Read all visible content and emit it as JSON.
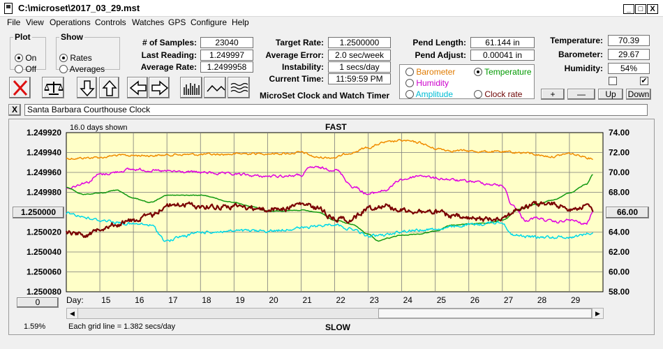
{
  "window": {
    "title": "C:\\microset\\2017_03_29.mst",
    "min_label": "_",
    "max_label": "□",
    "close_label": "X"
  },
  "menu": [
    "File",
    "View",
    "Operations",
    "Controls",
    "Watches",
    "GPS",
    "Configure",
    "Help"
  ],
  "plot_group": {
    "title": "Plot",
    "options": [
      "On",
      "Off"
    ],
    "selected": "On"
  },
  "show_group": {
    "title": "Show",
    "options": [
      "Rates",
      "Averages"
    ],
    "selected": "Rates"
  },
  "stats": {
    "samples_label": "# of Samples:",
    "samples": "23040",
    "last_reading_label": "Last Reading:",
    "last_reading": "1.249997",
    "average_rate_label": "Average Rate:",
    "average_rate": "1.2499958",
    "target_rate_label": "Target Rate:",
    "target_rate": "1.2500000",
    "average_error_label": "Average Error:",
    "average_error": "2.0 sec/week",
    "instability_label": "Instability:",
    "instability": "1 secs/day",
    "current_time_label": "Current Time:",
    "current_time": "11:59:59 PM",
    "pend_length_label": "Pend Length:",
    "pend_length": "61.144 in",
    "pend_adjust_label": "Pend Adjust:",
    "pend_adjust": "0.00041 in",
    "temperature_label": "Temperature:",
    "temperature": "70.39",
    "barometer_label": "Barometer:",
    "barometer": "29.67",
    "humidity_label": "Humidity:",
    "humidity": "54%"
  },
  "app_caption": "MicroSet Clock and Watch Timer",
  "sensor_options": [
    {
      "label": "Barometer",
      "color": "#e07a00",
      "selected": false
    },
    {
      "label": "Temperature",
      "color": "#009900",
      "selected": true
    },
    {
      "label": "Humidity",
      "color": "#cc00cc",
      "selected": false
    },
    {
      "label": "Clock rate",
      "color": "#6b0000",
      "selected": false
    },
    {
      "label": "Amplitude",
      "color": "#00bcd4",
      "selected": false
    }
  ],
  "adjust_buttons": {
    "plus": "+",
    "minus": "—",
    "up": "Up",
    "down": "Down"
  },
  "checkboxes": [
    {
      "checked": false
    },
    {
      "checked": true
    }
  ],
  "clock_name": "Santa Barbara Courthouse Clock",
  "clear_label": "X",
  "toolbar_icons": [
    "close-icon",
    "balance-scale-icon",
    "arrow-down-icon",
    "arrow-up-icon",
    "arrow-left-icon",
    "arrow-right-icon",
    "histogram-icon",
    "wave-icon",
    "multi-wave-icon"
  ],
  "chart_header": {
    "days_shown": "16.0 days shown",
    "top_label": "FAST",
    "bottom_label": "SLOW",
    "grid_note": "Each grid line = 1.382 secs/day",
    "day_prefix": "Day:",
    "percent": "1.59%",
    "left_scroll_value": "0"
  },
  "chart_data": {
    "type": "line",
    "left_axis_ticks": [
      "1.249920",
      "1.249940",
      "1.249960",
      "1.249980",
      "1.250000",
      "1.250020",
      "1.250040",
      "1.250060",
      "1.250080"
    ],
    "left_axis_value_box": "1.250000",
    "right_axis_ticks": [
      "74.00",
      "72.00",
      "70.00",
      "68.00",
      "66.00",
      "64.00",
      "62.00",
      "60.00",
      "58.00"
    ],
    "right_axis_value_box": "66.00",
    "x_days": [
      "15",
      "16",
      "17",
      "18",
      "19",
      "20",
      "21",
      "22",
      "23",
      "24",
      "25",
      "26",
      "27",
      "28",
      "29"
    ],
    "x_range": [
      14.0,
      30.0
    ],
    "grid": true,
    "background": "#ffffc8",
    "series": [
      {
        "name": "Barometer",
        "color": "#f08c00",
        "type": "noisy",
        "x": [
          14.0,
          15.0,
          15.5,
          16.5,
          17.5,
          18.5,
          19.5,
          20.5,
          21.0,
          21.5,
          22.0,
          22.5,
          23.0,
          23.5,
          24.0,
          24.5,
          25.0,
          25.5,
          26.5,
          27.5,
          28.5,
          29.0,
          29.3,
          29.7
        ],
        "y": [
          1.249946,
          1.249945,
          1.249943,
          1.249943,
          1.249942,
          1.249942,
          1.249941,
          1.249941,
          1.24994,
          1.249945,
          1.249945,
          1.24994,
          1.249935,
          1.24993,
          1.249928,
          1.24993,
          1.249936,
          1.249938,
          1.249939,
          1.24994,
          1.249944,
          1.249941,
          1.249943,
          1.249946
        ],
        "noise": 9e-07
      },
      {
        "name": "Humidity",
        "color": "#e000e0",
        "type": "noisy",
        "x": [
          14.0,
          14.6,
          15.0,
          16.0,
          17.0,
          18.0,
          19.0,
          20.0,
          21.0,
          21.3,
          22.0,
          22.6,
          23.0,
          23.5,
          24.0,
          24.6,
          25.0,
          26.0,
          27.0,
          27.3,
          27.7,
          28.0,
          28.6,
          29.0,
          29.5,
          29.7
        ],
        "y": [
          1.249976,
          1.24997,
          1.249962,
          1.249957,
          1.249959,
          1.24996,
          1.249962,
          1.249964,
          1.249963,
          1.249955,
          1.249957,
          1.249975,
          1.249982,
          1.249978,
          1.249967,
          1.249963,
          1.249966,
          1.249969,
          1.249973,
          1.249993,
          1.250008,
          1.250006,
          1.25001,
          1.250008,
          1.250012,
          1.25
        ],
        "noise": 1.1e-06
      },
      {
        "name": "Temperature",
        "color": "#119911",
        "type": "smooth",
        "x": [
          14.0,
          14.5,
          15.0,
          15.5,
          16.0,
          16.5,
          17.0,
          18.0,
          19.0,
          19.5,
          20.0,
          21.0,
          21.5,
          22.0,
          22.5,
          23.0,
          23.3,
          23.6,
          24.0,
          24.5,
          25.0,
          25.5,
          26.0,
          26.5,
          27.0,
          27.5,
          28.0,
          28.5,
          29.0,
          29.5,
          29.7
        ],
        "y": [
          1.249975,
          1.249982,
          1.249981,
          1.249978,
          1.249986,
          1.24999,
          1.249983,
          1.249983,
          1.24999,
          1.249994,
          1.249999,
          1.249998,
          1.25,
          1.250008,
          1.250012,
          1.250022,
          1.250029,
          1.250026,
          1.250023,
          1.250022,
          1.250019,
          1.250013,
          1.250012,
          1.250011,
          1.250008,
          1.249997,
          1.249992,
          1.249988,
          1.249981,
          1.249972,
          1.249962
        ],
        "noise": 3e-07
      },
      {
        "name": "Amplitude",
        "color": "#00d8e8",
        "type": "noisy",
        "x": [
          14.0,
          15.0,
          16.0,
          16.5,
          17.0,
          17.5,
          18.0,
          19.0,
          20.0,
          21.0,
          22.0,
          22.5,
          23.0,
          23.5,
          24.0,
          25.0,
          26.0,
          27.0,
          27.3,
          28.0,
          29.0,
          29.7
        ],
        "y": [
          1.250001,
          1.250008,
          1.250012,
          1.250013,
          1.250029,
          1.250024,
          1.25002,
          1.250019,
          1.250019,
          1.250016,
          1.250012,
          1.250017,
          1.250024,
          1.250023,
          1.250019,
          1.250017,
          1.250013,
          1.25001,
          1.250023,
          1.250025,
          1.250025,
          1.250021
        ],
        "noise": 1.2e-06
      },
      {
        "name": "Clock rate",
        "color": "#7a0000",
        "type": "noisy",
        "x": [
          14.0,
          14.7,
          15.0,
          15.5,
          16.0,
          16.5,
          17.0,
          17.5,
          18.0,
          19.0,
          20.0,
          20.5,
          21.0,
          21.5,
          22.0,
          22.5,
          23.0,
          23.5,
          24.0,
          24.5,
          25.0,
          25.5,
          26.0,
          26.5,
          27.0,
          27.5,
          28.0,
          28.5,
          29.0,
          29.5,
          29.7
        ],
        "y": [
          1.25002,
          1.250022,
          1.250015,
          1.250012,
          1.250008,
          1.250004,
          1.249993,
          1.249992,
          1.249994,
          1.249994,
          1.249997,
          1.249996,
          1.249992,
          1.249996,
          1.250006,
          1.250007,
          1.249996,
          1.249993,
          1.249998,
          1.249999,
          1.25,
          1.250004,
          1.250007,
          1.250007,
          1.250005,
          1.249997,
          1.249992,
          1.249992,
          1.249996,
          1.249994,
          1.249998
        ],
        "noise": 2.2e-06
      }
    ]
  }
}
